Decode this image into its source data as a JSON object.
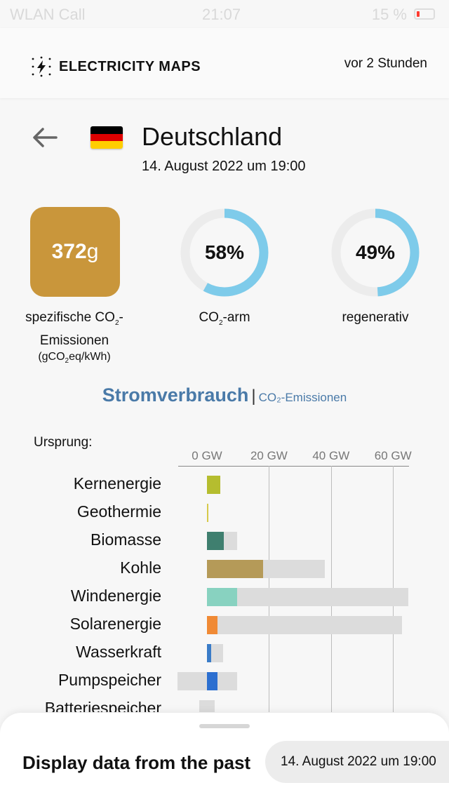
{
  "status_bar": {
    "carrier": "WLAN Call",
    "time": "21:07",
    "battery": "15 %"
  },
  "header": {
    "brand": "ELECTRICITY MAPS",
    "updated": "vor 2 Stunden"
  },
  "zone": {
    "name": "Deutschland",
    "datetime": "14. August 2022 um 19:00",
    "flag_colors": [
      "#000000",
      "#dd0000",
      "#ffce00"
    ]
  },
  "metrics": {
    "carbon_intensity": {
      "value": "372",
      "unit": "g",
      "label_a": "spezifische CO",
      "label_sub": "2",
      "label_b": "-Emissionen",
      "sub_a": "(gCO",
      "sub_sub": "2",
      "sub_b": "eq/kWh)",
      "color": "#c9963b"
    },
    "low_carbon": {
      "value": "58%",
      "fraction": 0.58,
      "label_a": "CO",
      "label_sub": "2",
      "label_b": "-arm"
    },
    "renewable": {
      "value": "49%",
      "fraction": 0.49,
      "label": "regenerativ"
    },
    "gauge_color": "#7ecbea"
  },
  "view_switch": {
    "active": "Stromverbrauch",
    "separator": "|",
    "inactive": "CO₂-Emissionen"
  },
  "chart_data": {
    "type": "bar",
    "title": "Ursprung:",
    "x_unit": "GW",
    "xlim": [
      0,
      65
    ],
    "ticks": [
      "0 GW",
      "20 GW",
      "40 GW",
      "60 GW"
    ],
    "tick_values": [
      0,
      20,
      40,
      60
    ],
    "categories": [
      "Kernenergie",
      "Geothermie",
      "Biomasse",
      "Kohle",
      "Windenergie",
      "Solarenergie",
      "Wasserkraft",
      "Pumpspeicher",
      "Batteriespeicher"
    ],
    "series": [
      {
        "values": [
          4.2,
          0.1,
          5.4,
          18.0,
          9.8,
          3.4,
          1.4,
          3.4,
          0.0
        ]
      }
    ],
    "capacity": [
      4.2,
      0.1,
      9.8,
      38.0,
      65.0,
      63.0,
      5.2,
      9.8,
      2.6
    ],
    "capacity_min": [
      0,
      0,
      0,
      0,
      0,
      0,
      0,
      -9.5,
      -2.4
    ],
    "colors": [
      "#b5bd2f",
      "#d6c94a",
      "#3f7f6f",
      "#b59a58",
      "#88d2c0",
      "#f08a35",
      "#3a7cc8",
      "#2c6fd0",
      "#8a3fbf"
    ]
  },
  "bottom_sheet": {
    "title": "Display data from the past",
    "date": "14. August 2022 um 19:00"
  }
}
